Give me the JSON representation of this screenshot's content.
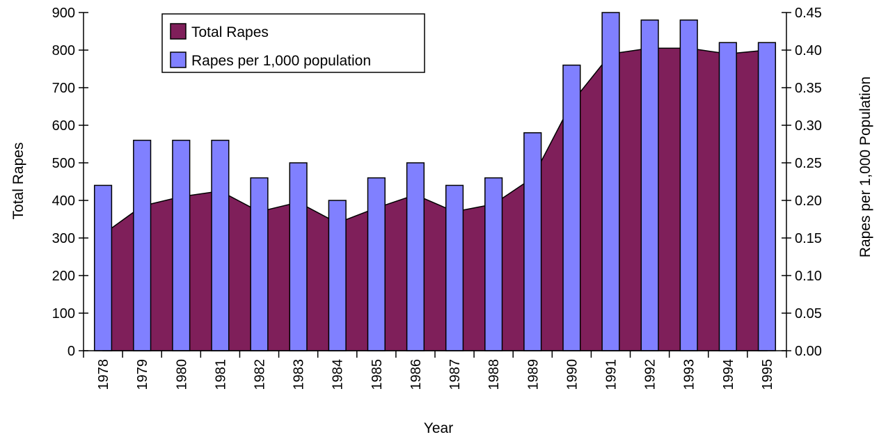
{
  "chart_data": {
    "type": "bar",
    "categories": [
      "1978",
      "1979",
      "1980",
      "1981",
      "1982",
      "1983",
      "1984",
      "1985",
      "1986",
      "1987",
      "1988",
      "1989",
      "1990",
      "1991",
      "1992",
      "1993",
      "1994",
      "1995"
    ],
    "series": [
      {
        "name": "Total Rapes",
        "type": "area",
        "axis": "left",
        "color": "#7F1F5A",
        "values": [
          310,
          385,
          410,
          425,
          370,
          395,
          340,
          380,
          415,
          370,
          390,
          460,
          660,
          790,
          805,
          805,
          790,
          800
        ]
      },
      {
        "name": "Rapes per 1,000 population",
        "type": "bar",
        "axis": "right",
        "color": "#8080FF",
        "values": [
          0.22,
          0.28,
          0.28,
          0.28,
          0.23,
          0.25,
          0.2,
          0.23,
          0.25,
          0.22,
          0.23,
          0.29,
          0.38,
          0.45,
          0.44,
          0.44,
          0.41,
          0.41
        ]
      }
    ],
    "xlabel": "Year",
    "ylabel": "Total Rapes",
    "y2label": "Rapes per 1,000 Population",
    "ylim": [
      0,
      900
    ],
    "y2lim": [
      0,
      0.45
    ],
    "yticks": [
      "0",
      "100",
      "200",
      "300",
      "400",
      "500",
      "600",
      "700",
      "800",
      "900"
    ],
    "y2ticks": [
      "0.00",
      "0.05",
      "0.10",
      "0.15",
      "0.20",
      "0.25",
      "0.30",
      "0.35",
      "0.40",
      "0.45"
    ],
    "grid": false,
    "legend_position": "top-left"
  }
}
